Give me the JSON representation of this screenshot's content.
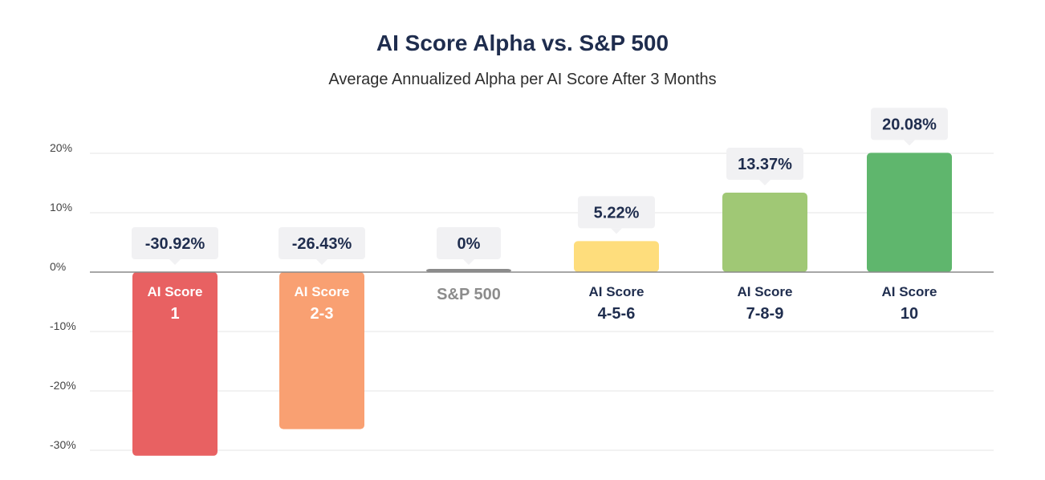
{
  "title": "AI Score Alpha vs. S&P 500",
  "subtitle": "Average Annualized Alpha per AI Score After 3 Months",
  "chart_data": {
    "type": "bar",
    "title": "AI Score Alpha vs. S&P 500",
    "subtitle": "Average Annualized Alpha per AI Score After 3 Months",
    "xlabel": "",
    "ylabel": "",
    "ylim": [
      -30,
      20
    ],
    "yticks": [
      "20%",
      "10%",
      "0%",
      "-10%",
      "-20%",
      "-30%"
    ],
    "grid": true,
    "categories": [
      {
        "line1": "AI Score",
        "line2": "1"
      },
      {
        "line1": "AI Score",
        "line2": "2-3"
      },
      {
        "line1": "",
        "line2": "S&P 500"
      },
      {
        "line1": "AI Score",
        "line2": "4-5-6"
      },
      {
        "line1": "AI Score",
        "line2": "7-8-9"
      },
      {
        "line1": "AI Score",
        "line2": "10"
      }
    ],
    "values": [
      -30.92,
      -26.43,
      0,
      5.22,
      13.37,
      20.08
    ],
    "value_labels": [
      "-30.92%",
      "-26.43%",
      "0%",
      "5.22%",
      "13.37%",
      "20.08%"
    ],
    "colors": [
      "#e86162",
      "#f9a072",
      "#8c8c8c",
      "#fedd7c",
      "#a0c875",
      "#5fb66d"
    ],
    "label_colors": [
      "#ffffff",
      "#ffffff",
      "#8c8c8c",
      "#1f2d4e",
      "#1f2d4e",
      "#1f2d4e"
    ]
  }
}
